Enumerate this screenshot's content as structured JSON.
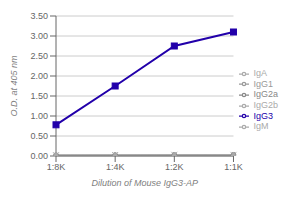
{
  "chart_data": {
    "type": "line",
    "x_label": "Dilution of Mouse IgG3-AP",
    "y_label": "O.D. at 405 nm",
    "categories": [
      "1:8K",
      "1:4K",
      "1:2K",
      "1:1K"
    ],
    "series": [
      {
        "name": "IgG1",
        "color": "#999999",
        "marker": "triangle",
        "values": [
          0.02,
          0.02,
          0.025,
          0.025
        ]
      },
      {
        "name": "IgG2a",
        "color": "#888888",
        "marker": "circle",
        "values": [
          0.02,
          0.022,
          0.025,
          0.028
        ]
      },
      {
        "name": "IgG2b",
        "color": "#aaaaaa",
        "marker": "triangle",
        "values": [
          0.018,
          0.02,
          0.022,
          0.022
        ]
      },
      {
        "name": "IgG3",
        "color": "#2200aa",
        "marker": "square",
        "values": [
          0.78,
          1.75,
          2.75,
          3.1
        ]
      },
      {
        "name": "IgA",
        "color": "#aaaaaa",
        "marker": "x",
        "values": [
          0.02,
          0.025,
          0.03,
          0.028
        ]
      },
      {
        "name": "IgM",
        "color": "#aaaaaa",
        "marker": "none",
        "values": [
          0.018,
          0.018,
          0.02,
          0.022
        ]
      }
    ],
    "ylim": [
      0.0,
      3.5
    ],
    "yticks": [
      {
        "value": 0,
        "label": "0.00"
      },
      {
        "value": 0.5,
        "label": "0.50"
      },
      {
        "value": 1,
        "label": "1.00"
      },
      {
        "value": 1.5,
        "label": "1.50"
      },
      {
        "value": 2,
        "label": "2.00"
      },
      {
        "value": 2.5,
        "label": "2.50"
      },
      {
        "value": 3,
        "label": "3.00"
      },
      {
        "value": 3.5,
        "label": "3.50"
      }
    ],
    "grid": true,
    "legend": "right"
  }
}
